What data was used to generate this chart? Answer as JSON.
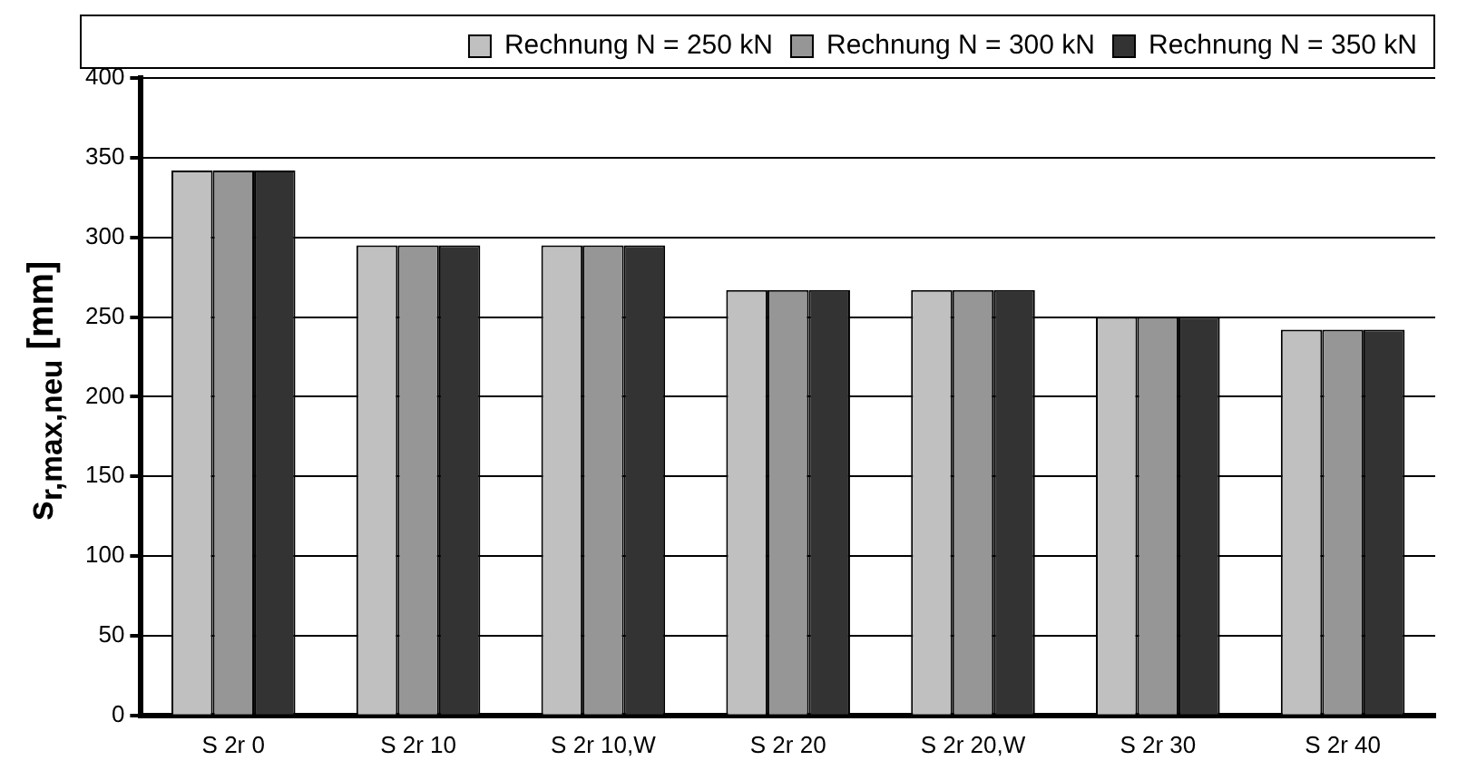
{
  "chart_data": {
    "type": "bar",
    "ylabel": "s$_{r,max,neu}$ [mm]",
    "categories": [
      "S 2r 0",
      "S 2r 10",
      "S 2r 10,W",
      "S 2r 20",
      "S 2r 20,W",
      "S 2r 30",
      "S 2r 40"
    ],
    "series": [
      {
        "name": "Rechnung N = 250 kN",
        "color": "#c0c0c0",
        "values": [
          342,
          295,
          295,
          267,
          267,
          250,
          242
        ]
      },
      {
        "name": "Rechnung N = 300 kN",
        "color": "#969696",
        "values": [
          342,
          295,
          295,
          267,
          267,
          250,
          242
        ]
      },
      {
        "name": "Rechnung N = 350 kN",
        "color": "#333333",
        "values": [
          342,
          295,
          295,
          267,
          267,
          250,
          242
        ]
      }
    ],
    "ylim": [
      0,
      400
    ],
    "yticks": [
      0,
      50,
      100,
      150,
      200,
      250,
      300,
      350,
      400
    ],
    "grid": "y",
    "legend": "top right"
  }
}
